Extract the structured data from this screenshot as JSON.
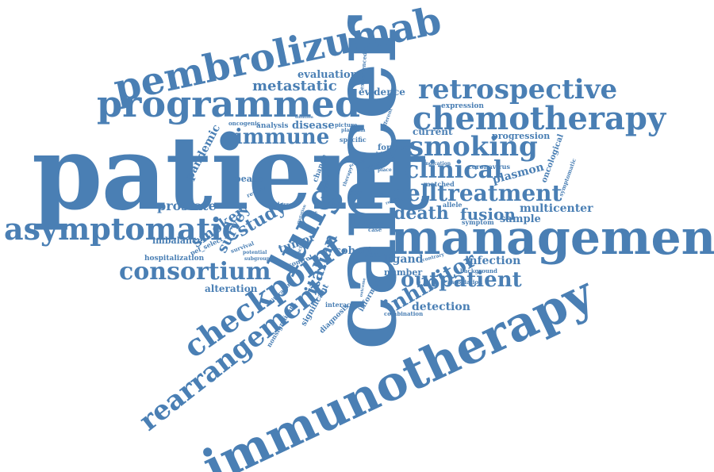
{
  "cloud": {
    "color": "#4a7fb4",
    "words": {
      "patient": "patient",
      "cancer": "cancer",
      "immunotherapy": "immunotherapy",
      "management": "management",
      "pembrolizumab": "pembrolizumab",
      "programmed": "programmed",
      "chemotherapy": "chemotherapy",
      "retrospective": "retrospective",
      "checkpoint": "checkpoint",
      "lung": "lung",
      "rearrangement": "rearrangement",
      "asymptomatic": "asymptomatic",
      "consortium": "consortium",
      "smoking": "smoking",
      "clinical": "clinical",
      "celltreatment": "celltreatment",
      "immune": "immune",
      "metastatic": "metastatic",
      "death": "death",
      "fusion": "fusion",
      "inhibitor": "inhibitor",
      "outpatient": "outpatient",
      "italian": "italian",
      "study": "study",
      "prostate": "prostate",
      "evaluation": "evaluation",
      "evidence": "evidence",
      "disease": "disease",
      "analysis": "analysis",
      "oncogenic": "oncogenic",
      "pandemic": "pandemic",
      "current": "current",
      "progression": "progression",
      "expression": "expression",
      "plasmon": "plasmon",
      "multicenter": "multicenter",
      "sample": "sample",
      "symptom": "symptom",
      "infection": "infection",
      "ligand": "ligand",
      "cohort": "cohort",
      "number": "number",
      "detection": "detection",
      "alteration": "alteration",
      "hospitalization": "hospitalization",
      "imbalance": "imbalance",
      "smoker": "smoker",
      "survey": "survey",
      "tumor": "tumor",
      "peace": "peace",
      "line": "line",
      "status": "status",
      "former": "former",
      "specific": "specific",
      "oncological": "oncological",
      "symptomatic": "symptomatic",
      "allele": "allele",
      "coronavirus": "coronavirus",
      "background": "background",
      "association": "association",
      "interaction": "interaction",
      "diagnosis": "diagnosis",
      "significant": "significant",
      "nonsignificant": "nonsignificant",
      "combination": "combination",
      "informed": "informed",
      "control": "control",
      "survival": "survival",
      "subgroup": "subgroup",
      "potential": "potential",
      "pef_select": "pef_select",
      "review": "review",
      "lesson": "lesson",
      "change": "change",
      "wave": "wave",
      "sar": "sar",
      "icis": "icis",
      "unit": "unit",
      "copy": "copy",
      "case": "case",
      "medical": "medical",
      "contrary": "contrary",
      "matched": "matched",
      "indication": "indication",
      "driven": "driven",
      "place": "place",
      "platinum": "platinum",
      "solution": "solution",
      "picture": "picture",
      "different": "different",
      "experienced": "experienced",
      "literature": "literature",
      "fraction": "fraction",
      "therapy": "therapy",
      "present": "present",
      "clinic": "clinic",
      "result": "result",
      "outcome": "outcome",
      "mutation": "mutation",
      "type": "type"
    }
  }
}
